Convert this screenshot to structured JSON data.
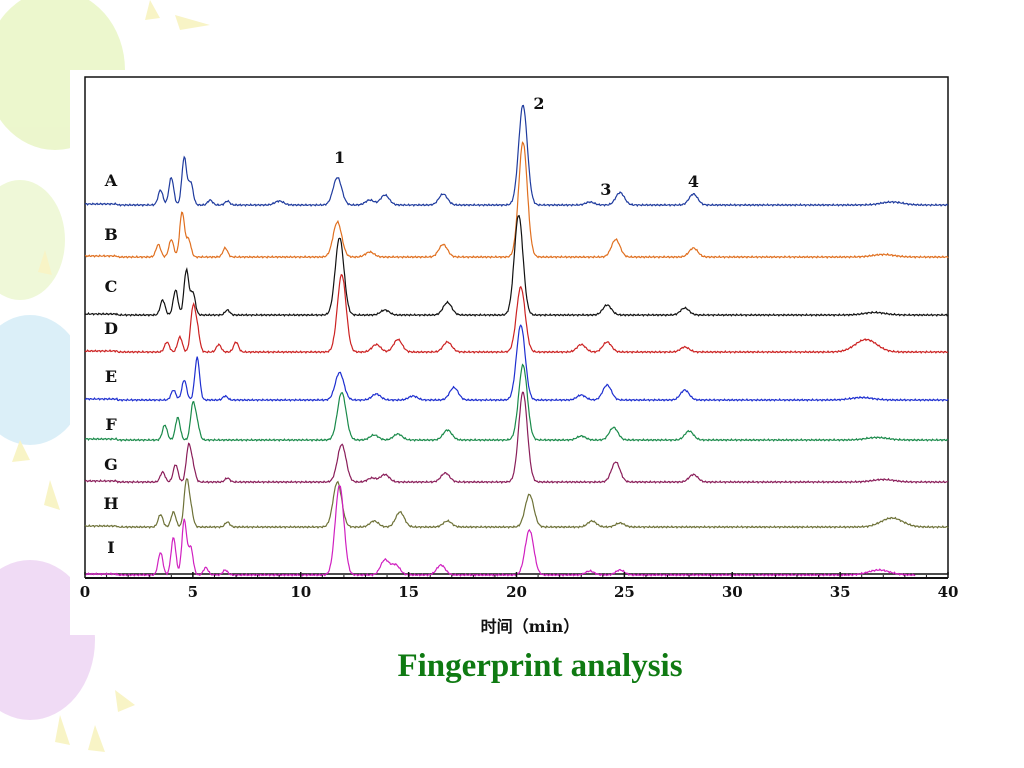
{
  "slide": {
    "caption": "Fingerprint analysis",
    "caption_color": "#0f7a12",
    "balloon_colors": [
      "#eaf6c8",
      "#d8eef8",
      "#efd8f4",
      "#f8f3c0"
    ]
  },
  "chart_data": {
    "type": "line",
    "title": "",
    "xlabel": "时间（min）",
    "ylabel": "",
    "xlim": [
      0,
      40
    ],
    "x_ticks": [
      "0",
      "5",
      "10",
      "15",
      "20",
      "25",
      "30",
      "35",
      "40"
    ],
    "grid": false,
    "legend": "none",
    "peak_labels": [
      {
        "label": "1",
        "x": 11.8
      },
      {
        "label": "2",
        "x": 20.3
      },
      {
        "label": "3",
        "x": 23.4
      },
      {
        "label": "4",
        "x": 28.2
      }
    ],
    "series": [
      {
        "name": "A",
        "color": "#1f3b9e",
        "end_x": 40,
        "peaks": [
          [
            3.5,
            0.3
          ],
          [
            4.0,
            0.55
          ],
          [
            4.6,
            0.95
          ],
          [
            4.9,
            0.45
          ],
          [
            5.8,
            0.1
          ],
          [
            6.6,
            0.08
          ],
          [
            9.0,
            0.08
          ],
          [
            11.7,
            0.55
          ],
          [
            13.2,
            0.1
          ],
          [
            13.9,
            0.2
          ],
          [
            16.6,
            0.22
          ],
          [
            20.3,
            2.0
          ],
          [
            23.4,
            0.06
          ],
          [
            24.8,
            0.25
          ],
          [
            28.2,
            0.22
          ],
          [
            37.4,
            0.06
          ]
        ]
      },
      {
        "name": "B",
        "color": "#e07020",
        "end_x": 40,
        "peaks": [
          [
            3.4,
            0.25
          ],
          [
            4.0,
            0.35
          ],
          [
            4.5,
            0.9
          ],
          [
            4.8,
            0.35
          ],
          [
            6.5,
            0.18
          ],
          [
            11.7,
            0.7
          ],
          [
            13.2,
            0.1
          ],
          [
            16.6,
            0.25
          ],
          [
            20.3,
            2.3
          ],
          [
            24.6,
            0.35
          ],
          [
            28.2,
            0.18
          ],
          [
            37.0,
            0.05
          ]
        ]
      },
      {
        "name": "C",
        "color": "#111111",
        "end_x": 40,
        "peaks": [
          [
            3.6,
            0.3
          ],
          [
            4.2,
            0.5
          ],
          [
            4.7,
            0.9
          ],
          [
            5.0,
            0.45
          ],
          [
            6.6,
            0.1
          ],
          [
            11.8,
            1.55
          ],
          [
            13.9,
            0.1
          ],
          [
            16.8,
            0.25
          ],
          [
            20.1,
            2.0
          ],
          [
            24.2,
            0.2
          ],
          [
            27.8,
            0.14
          ],
          [
            36.6,
            0.05
          ]
        ]
      },
      {
        "name": "D",
        "color": "#cc2222",
        "end_x": 40,
        "peaks": [
          [
            3.8,
            0.2
          ],
          [
            4.4,
            0.3
          ],
          [
            5.0,
            0.85
          ],
          [
            5.2,
            0.45
          ],
          [
            6.2,
            0.15
          ],
          [
            7.0,
            0.2
          ],
          [
            11.9,
            1.55
          ],
          [
            13.5,
            0.15
          ],
          [
            14.5,
            0.25
          ],
          [
            16.8,
            0.2
          ],
          [
            20.2,
            1.3
          ],
          [
            23.0,
            0.15
          ],
          [
            24.2,
            0.2
          ],
          [
            27.8,
            0.1
          ],
          [
            36.2,
            0.25
          ]
        ]
      },
      {
        "name": "E",
        "color": "#1e2fd0",
        "end_x": 40,
        "peaks": [
          [
            4.1,
            0.2
          ],
          [
            4.6,
            0.4
          ],
          [
            5.2,
            0.85
          ],
          [
            6.5,
            0.08
          ],
          [
            11.8,
            0.55
          ],
          [
            13.5,
            0.12
          ],
          [
            15.2,
            0.08
          ],
          [
            17.1,
            0.25
          ],
          [
            20.2,
            1.5
          ],
          [
            23.0,
            0.1
          ],
          [
            24.2,
            0.3
          ],
          [
            27.8,
            0.2
          ],
          [
            36.0,
            0.05
          ]
        ]
      },
      {
        "name": "F",
        "color": "#1a8a4a",
        "end_x": 40,
        "peaks": [
          [
            3.7,
            0.3
          ],
          [
            4.3,
            0.45
          ],
          [
            5.0,
            0.7
          ],
          [
            5.2,
            0.3
          ],
          [
            11.9,
            0.95
          ],
          [
            13.4,
            0.1
          ],
          [
            14.5,
            0.12
          ],
          [
            16.8,
            0.2
          ],
          [
            20.3,
            1.5
          ],
          [
            23.0,
            0.08
          ],
          [
            24.5,
            0.25
          ],
          [
            28.0,
            0.18
          ],
          [
            36.7,
            0.05
          ]
        ]
      },
      {
        "name": "G",
        "color": "#8a1e5a",
        "end_x": 40,
        "peaks": [
          [
            3.6,
            0.2
          ],
          [
            4.2,
            0.35
          ],
          [
            4.8,
            0.7
          ],
          [
            5.0,
            0.3
          ],
          [
            6.6,
            0.08
          ],
          [
            11.9,
            0.75
          ],
          [
            13.3,
            0.08
          ],
          [
            13.9,
            0.15
          ],
          [
            16.7,
            0.18
          ],
          [
            20.3,
            1.8
          ],
          [
            24.6,
            0.4
          ],
          [
            28.2,
            0.15
          ],
          [
            37.0,
            0.05
          ]
        ]
      },
      {
        "name": "H",
        "color": "#6e7238",
        "end_x": 40,
        "peaks": [
          [
            3.5,
            0.25
          ],
          [
            4.1,
            0.3
          ],
          [
            4.7,
            0.9
          ],
          [
            4.9,
            0.35
          ],
          [
            6.6,
            0.1
          ],
          [
            11.7,
            0.9
          ],
          [
            13.4,
            0.12
          ],
          [
            14.6,
            0.3
          ],
          [
            16.8,
            0.12
          ],
          [
            20.6,
            0.65
          ],
          [
            23.5,
            0.12
          ],
          [
            24.8,
            0.08
          ],
          [
            37.4,
            0.18
          ]
        ]
      },
      {
        "name": "I",
        "color": "#d020c0",
        "end_x": 38.5,
        "peaks": [
          [
            3.5,
            0.45
          ],
          [
            4.1,
            0.75
          ],
          [
            4.6,
            1.1
          ],
          [
            4.9,
            0.55
          ],
          [
            5.6,
            0.15
          ],
          [
            6.5,
            0.1
          ],
          [
            11.8,
            1.8
          ],
          [
            13.9,
            0.3
          ],
          [
            14.4,
            0.2
          ],
          [
            16.5,
            0.2
          ],
          [
            20.6,
            0.9
          ],
          [
            23.4,
            0.08
          ],
          [
            24.8,
            0.1
          ],
          [
            36.8,
            0.1
          ]
        ]
      }
    ]
  }
}
